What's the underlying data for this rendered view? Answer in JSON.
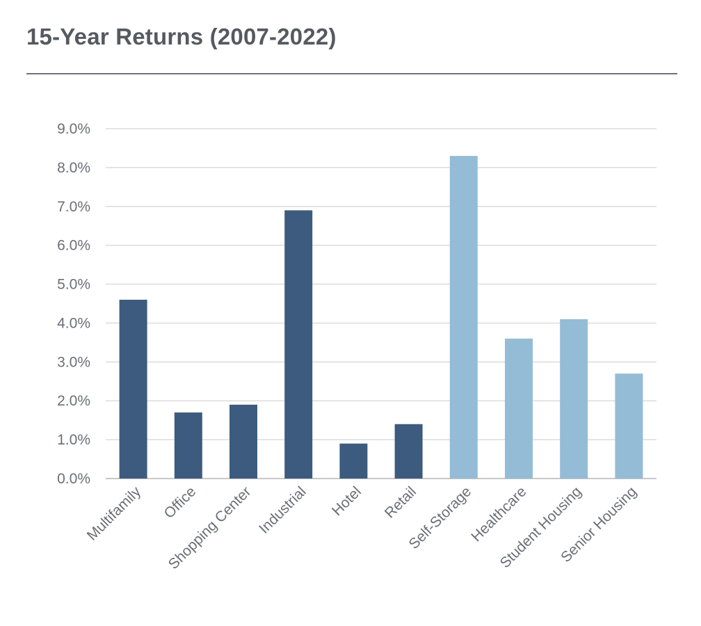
{
  "title": "15-Year Returns (2007-2022)",
  "chart_data": {
    "type": "bar",
    "title": "15-Year Returns (2007-2022)",
    "xlabel": "",
    "ylabel": "",
    "ylim": [
      0,
      9
    ],
    "yticks": [
      "0.0%",
      "1.0%",
      "2.0%",
      "3.0%",
      "4.0%",
      "5.0%",
      "6.0%",
      "7.0%",
      "8.0%",
      "9.0%"
    ],
    "grid": true,
    "legend": "none",
    "categories": [
      "Multifamily",
      "Office",
      "Shopping Center",
      "Industrial",
      "Hotel",
      "Retail",
      "Self-Storage",
      "Healthcare",
      "Student Housing",
      "Senior Housing"
    ],
    "values": [
      4.6,
      1.7,
      1.9,
      6.9,
      0.9,
      1.4,
      8.3,
      3.6,
      4.1,
      2.7
    ],
    "colors": {
      "dark": "#3d5b7e",
      "light": "#95bcd6",
      "grid": "#dcdcdc",
      "axis": "#c8c8c8"
    },
    "bar_color_group": [
      "dark",
      "dark",
      "dark",
      "dark",
      "dark",
      "dark",
      "light",
      "light",
      "light",
      "light"
    ]
  }
}
